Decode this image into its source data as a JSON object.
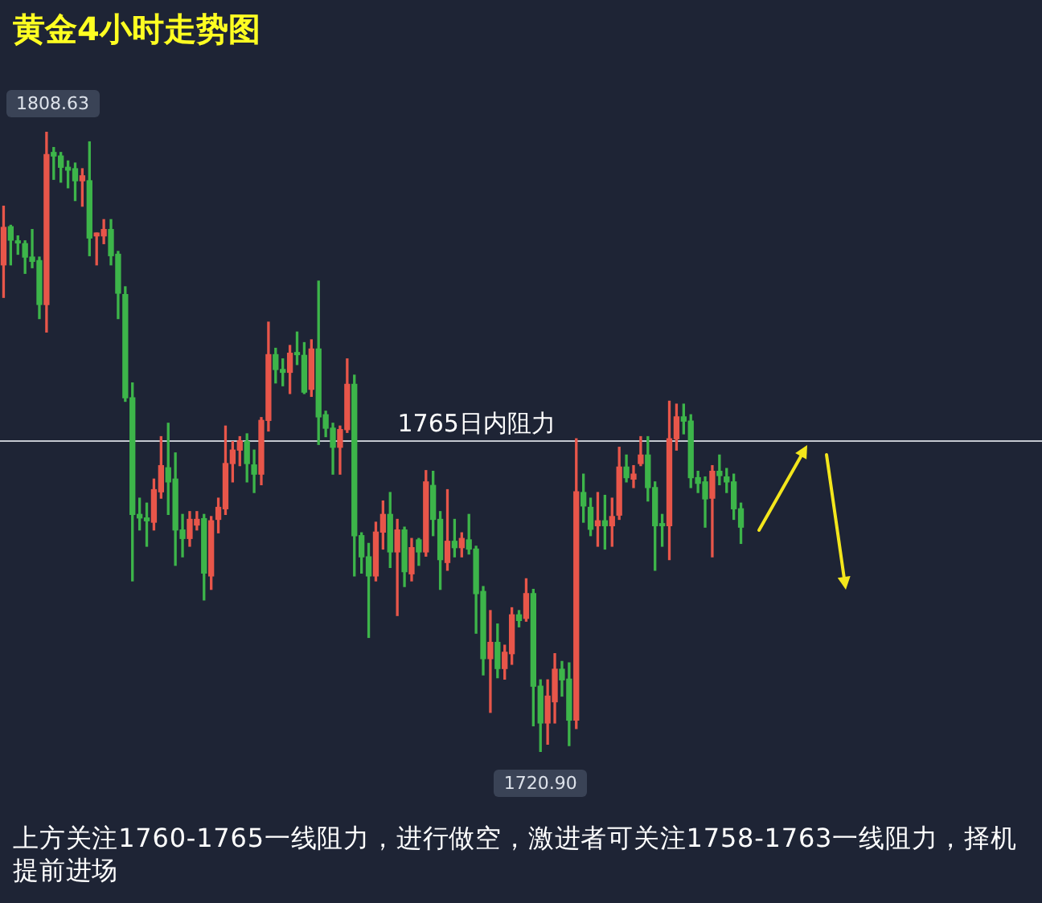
{
  "chart_data": {
    "type": "candlestick",
    "title": "黄金4小时走势图",
    "categories": [
      null,
      null,
      null,
      null,
      null,
      null,
      null,
      null,
      null,
      null,
      null,
      null,
      null,
      null,
      null,
      null,
      null,
      null,
      null,
      null,
      null,
      null,
      null,
      null,
      null,
      null,
      null,
      null,
      null,
      null,
      null,
      null,
      null,
      null,
      null,
      null,
      null,
      null,
      null,
      null,
      null,
      null,
      null,
      null,
      null,
      null,
      null,
      null,
      null,
      null,
      null,
      null,
      null,
      null,
      null,
      null,
      null,
      null,
      null,
      null,
      null,
      null,
      null,
      null,
      null,
      null,
      null,
      null,
      null,
      null,
      null,
      null,
      null,
      null,
      null,
      null,
      null,
      null,
      null,
      null,
      null,
      null,
      null,
      null,
      null,
      null,
      null,
      null,
      null,
      null,
      null,
      null,
      null,
      null,
      null,
      null,
      null,
      null,
      null,
      null,
      null,
      null,
      null,
      null
    ],
    "ohlc": [
      [
        1789.8,
        1798.1,
        1785.2,
        1795.1
      ],
      [
        1795.2,
        1795.4,
        1789.8,
        1793.3
      ],
      [
        1793.2,
        1793.9,
        1791.3,
        1792.9
      ],
      [
        1792.8,
        1793.2,
        1788.6,
        1790.9
      ],
      [
        1790.9,
        1794.8,
        1789.4,
        1790.3
      ],
      [
        1790.4,
        1790.9,
        1782.2,
        1784.2
      ],
      [
        1784.2,
        1808.63,
        1780.3,
        1805.4
      ],
      [
        1805.7,
        1806.4,
        1801.9,
        1805.2
      ],
      [
        1805.2,
        1805.7,
        1801.5,
        1803.6
      ],
      [
        1803.6,
        1804.5,
        1800.7,
        1803.2
      ],
      [
        1803.4,
        1804.2,
        1798.9,
        1801.7
      ],
      [
        1801.7,
        1803.4,
        1798.1,
        1802.4
      ],
      [
        1801.7,
        1807.2,
        1791.1,
        1793.6
      ],
      [
        1793.9,
        1794.3,
        1789.8,
        1794.3
      ],
      [
        1793.9,
        1796.2,
        1792.8,
        1794.8
      ],
      [
        1794.8,
        1796.2,
        1789.8,
        1791.1
      ],
      [
        1791.3,
        1791.7,
        1782.2,
        1785.8
      ],
      [
        1785.6,
        1786.7,
        1770.5,
        1771.0
      ],
      [
        1771.0,
        1773.1,
        1745.1,
        1754.5
      ],
      [
        1754.5,
        1756.8,
        1752.3,
        1754.0
      ],
      [
        1754.0,
        1756.1,
        1750.0,
        1753.6
      ],
      [
        1753.4,
        1759.5,
        1752.3,
        1758.0
      ],
      [
        1757.7,
        1765.5,
        1756.8,
        1761.4
      ],
      [
        1761.1,
        1767.4,
        1754.5,
        1759.1
      ],
      [
        1759.5,
        1763.2,
        1747.3,
        1752.3
      ],
      [
        1752.3,
        1754.5,
        1748.5,
        1751.1
      ],
      [
        1751.1,
        1754.9,
        1750.0,
        1753.8
      ],
      [
        1753.0,
        1754.9,
        1752.3,
        1753.8
      ],
      [
        1753.9,
        1754.5,
        1742.4,
        1746.2
      ],
      [
        1745.8,
        1754.2,
        1743.9,
        1753.6
      ],
      [
        1753.8,
        1756.8,
        1751.9,
        1755.5
      ],
      [
        1755.3,
        1767.0,
        1754.5,
        1761.7
      ],
      [
        1761.7,
        1764.8,
        1759.1,
        1763.6
      ],
      [
        1763.6,
        1765.5,
        1761.4,
        1764.9
      ],
      [
        1764.8,
        1765.9,
        1759.1,
        1761.7
      ],
      [
        1761.5,
        1763.6,
        1757.6,
        1760.2
      ],
      [
        1760.2,
        1768.2,
        1758.7,
        1767.8
      ],
      [
        1767.8,
        1781.7,
        1766.3,
        1777.1
      ],
      [
        1777.1,
        1778.0,
        1773.1,
        1775.0
      ],
      [
        1775.0,
        1776.5,
        1772.7,
        1774.6
      ],
      [
        1774.6,
        1778.4,
        1771.6,
        1777.3
      ],
      [
        1777.4,
        1780.3,
        1775.7,
        1777.1
      ],
      [
        1777.0,
        1778.8,
        1771.6,
        1771.8
      ],
      [
        1772.2,
        1779.2,
        1771.2,
        1777.9
      ],
      [
        1777.9,
        1787.5,
        1764.4,
        1768.3
      ],
      [
        1768.6,
        1769.1,
        1765.5,
        1766.7
      ],
      [
        1766.7,
        1767.4,
        1760.2,
        1764.0
      ],
      [
        1764.0,
        1767.0,
        1760.2,
        1766.5
      ],
      [
        1766.5,
        1776.5,
        1766.1,
        1772.9
      ],
      [
        1772.9,
        1774.2,
        1745.8,
        1751.5
      ],
      [
        1751.5,
        1751.9,
        1746.2,
        1748.5
      ],
      [
        1748.5,
        1750.4,
        1737.1,
        1745.8
      ],
      [
        1745.8,
        1753.4,
        1745.1,
        1752.0
      ],
      [
        1752.0,
        1756.4,
        1749.6,
        1754.5
      ],
      [
        1754.5,
        1757.6,
        1747.0,
        1749.2
      ],
      [
        1749.2,
        1753.8,
        1740.2,
        1752.3
      ],
      [
        1752.3,
        1752.7,
        1744.3,
        1746.4
      ],
      [
        1746.1,
        1751.1,
        1745.1,
        1749.8
      ],
      [
        1750.9,
        1751.1,
        1747.3,
        1749.2
      ],
      [
        1749.2,
        1760.7,
        1748.6,
        1759.1
      ],
      [
        1758.6,
        1760.6,
        1751.5,
        1753.8
      ],
      [
        1753.8,
        1754.9,
        1743.9,
        1748.1
      ],
      [
        1747.7,
        1758.0,
        1746.6,
        1750.7
      ],
      [
        1750.7,
        1753.8,
        1748.5,
        1749.8
      ],
      [
        1749.8,
        1751.9,
        1748.5,
        1751.1
      ],
      [
        1750.9,
        1754.5,
        1748.9,
        1749.6
      ],
      [
        1749.6,
        1750.0,
        1737.7,
        1743.3
      ],
      [
        1743.6,
        1744.3,
        1731.8,
        1734.1
      ],
      [
        1734.1,
        1740.9,
        1726.5,
        1736.4
      ],
      [
        1736.4,
        1739.0,
        1731.4,
        1732.7
      ],
      [
        1732.7,
        1736.0,
        1731.2,
        1735.0
      ],
      [
        1734.8,
        1741.3,
        1733.3,
        1740.3
      ],
      [
        1740.3,
        1740.9,
        1738.6,
        1739.5
      ],
      [
        1739.8,
        1745.4,
        1739.4,
        1743.3
      ],
      [
        1743.3,
        1743.9,
        1724.6,
        1730.2
      ],
      [
        1730.2,
        1731.1,
        1720.9,
        1725.0
      ],
      [
        1725.0,
        1731.1,
        1722.0,
        1728.8
      ],
      [
        1728.0,
        1734.8,
        1725.0,
        1732.6
      ],
      [
        1732.6,
        1733.7,
        1728.8,
        1731.1
      ],
      [
        1731.2,
        1733.5,
        1721.8,
        1725.4
      ],
      [
        1725.4,
        1765.2,
        1724.2,
        1757.7
      ],
      [
        1757.6,
        1760.2,
        1753.4,
        1755.7
      ],
      [
        1755.5,
        1756.8,
        1751.5,
        1752.4
      ],
      [
        1752.9,
        1757.6,
        1750.0,
        1753.6
      ],
      [
        1753.6,
        1757.2,
        1749.6,
        1752.9
      ],
      [
        1752.9,
        1756.8,
        1750.0,
        1754.2
      ],
      [
        1754.4,
        1764.0,
        1753.8,
        1761.2
      ],
      [
        1761.2,
        1762.9,
        1759.1,
        1759.7
      ],
      [
        1759.5,
        1761.4,
        1758.3,
        1760.2
      ],
      [
        1761.7,
        1765.5,
        1761.4,
        1762.9
      ],
      [
        1762.9,
        1765.5,
        1756.4,
        1758.3
      ],
      [
        1758.3,
        1759.1,
        1746.6,
        1752.9
      ],
      [
        1753.2,
        1754.5,
        1750.0,
        1752.9
      ],
      [
        1752.9,
        1770.5,
        1748.1,
        1765.2
      ],
      [
        1765.2,
        1770.1,
        1763.6,
        1768.3
      ],
      [
        1768.3,
        1770.1,
        1765.9,
        1767.7
      ],
      [
        1767.7,
        1768.6,
        1758.3,
        1759.7
      ],
      [
        1759.7,
        1760.6,
        1757.6,
        1758.9
      ],
      [
        1759.1,
        1759.8,
        1752.7,
        1756.7
      ],
      [
        1756.8,
        1761.4,
        1748.5,
        1760.6
      ],
      [
        1760.6,
        1762.9,
        1758.7,
        1760.0
      ],
      [
        1759.8,
        1761.0,
        1757.6,
        1759.1
      ],
      [
        1759.1,
        1760.2,
        1753.8,
        1755.3
      ],
      [
        1755.3,
        1756.1,
        1750.4,
        1752.7
      ]
    ],
    "colors": [
      "#e8564a",
      "#3db54a",
      "#3db54a",
      "#3db54a",
      "#3db54a",
      "#3db54a",
      "#e8564a",
      "#3db54a",
      "#3db54a",
      "#3db54a",
      "#3db54a",
      "#e8564a",
      "#3db54a",
      "#e8564a",
      "#e8564a",
      "#3db54a",
      "#3db54a",
      "#3db54a",
      "#3db54a",
      "#3db54a",
      "#3db54a",
      "#e8564a",
      "#e8564a",
      "#3db54a",
      "#3db54a",
      "#3db54a",
      "#e8564a",
      "#e8564a",
      "#3db54a",
      "#e8564a",
      "#e8564a",
      "#e8564a",
      "#e8564a",
      "#e8564a",
      "#3db54a",
      "#3db54a",
      "#e8564a",
      "#e8564a",
      "#3db54a",
      "#3db54a",
      "#e8564a",
      "#3db54a",
      "#3db54a",
      "#e8564a",
      "#3db54a",
      "#3db54a",
      "#3db54a",
      "#e8564a",
      "#e8564a",
      "#3db54a",
      "#3db54a",
      "#3db54a",
      "#e8564a",
      "#e8564a",
      "#3db54a",
      "#e8564a",
      "#3db54a",
      "#e8564a",
      "#3db54a",
      "#e8564a",
      "#3db54a",
      "#3db54a",
      "#e8564a",
      "#3db54a",
      "#e8564a",
      "#3db54a",
      "#3db54a",
      "#3db54a",
      "#e8564a",
      "#3db54a",
      "#e8564a",
      "#e8564a",
      "#3db54a",
      "#e8564a",
      "#3db54a",
      "#3db54a",
      "#e8564a",
      "#e8564a",
      "#3db54a",
      "#3db54a",
      "#e8564a",
      "#3db54a",
      "#3db54a",
      "#e8564a",
      "#3db54a",
      "#e8564a",
      "#e8564a",
      "#3db54a",
      "#e8564a",
      "#e8564a",
      "#3db54a",
      "#3db54a",
      "#3db54a",
      "#e8564a",
      "#e8564a",
      "#3db54a",
      "#3db54a",
      "#3db54a",
      "#3db54a",
      "#e8564a",
      "#3db54a",
      "#3db54a",
      "#3db54a",
      "#3db54a"
    ],
    "ref_lines": [
      {
        "axis": "y",
        "value": 1765,
        "label": "1765日内阻力",
        "color": "#c4c8d0"
      }
    ],
    "annotations": [
      {
        "text": "1808.63",
        "y": 1808.63
      },
      {
        "text": "1720.90",
        "y": 1720.9
      },
      "上方关注1760-1765一线阻力，进行做空，激进者可关注1758-1763一线阻力，择机提前进场"
    ],
    "tick_labels": false
  }
}
